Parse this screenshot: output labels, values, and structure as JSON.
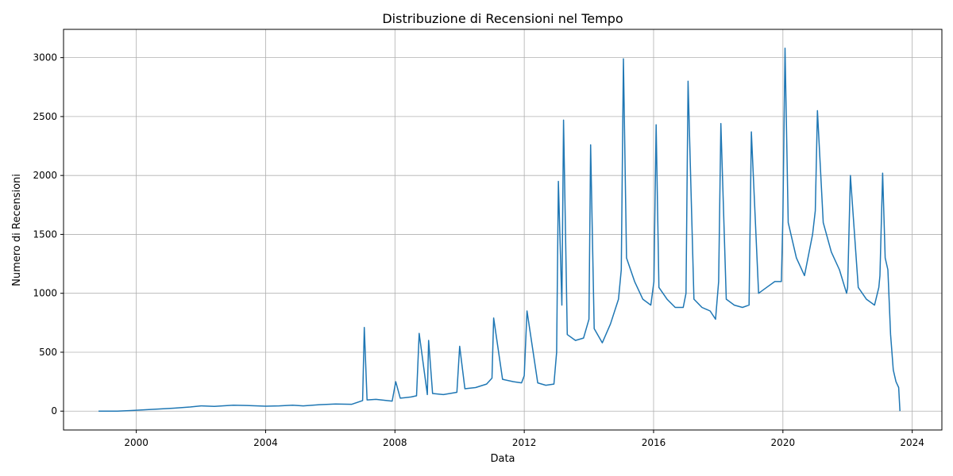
{
  "chart_data": {
    "type": "line",
    "title": "Distribuzione di Recensioni nel Tempo",
    "xlabel": "Data",
    "ylabel": "Numero di Recensioni",
    "xlim": [
      "1997-10-01",
      "2024-12-01"
    ],
    "ylim": [
      -160,
      3240
    ],
    "x_ticks": [
      "2000",
      "2004",
      "2008",
      "2012",
      "2016",
      "2020",
      "2024"
    ],
    "x_tick_dates": [
      "2000-01-01",
      "2004-01-01",
      "2008-01-01",
      "2012-01-01",
      "2016-01-01",
      "2020-01-01",
      "2024-01-01"
    ],
    "y_ticks": [
      0,
      500,
      1000,
      1500,
      2000,
      2500,
      3000
    ],
    "grid": true,
    "line_color": "#1f77b4",
    "series": [
      {
        "x": [
          "1998-11-01",
          "1999-06-01",
          "1999-11-01",
          "2000-03-01",
          "2000-09-01",
          "2001-03-01",
          "2001-09-01",
          "2002-01-01",
          "2002-06-01",
          "2003-01-01",
          "2003-06-01",
          "2004-01-01",
          "2004-06-01",
          "2004-11-01",
          "2005-03-01",
          "2005-09-01",
          "2006-03-01",
          "2006-09-01",
          "2007-01-01",
          "2007-01-20",
          "2007-02-20",
          "2007-06-01",
          "2007-12-01",
          "2008-01-10",
          "2008-03-01",
          "2008-07-01",
          "2008-09-01",
          "2008-10-01",
          "2009-01-01",
          "2009-01-15",
          "2009-03-01",
          "2009-07-01",
          "2009-12-01",
          "2010-01-01",
          "2010-03-01",
          "2010-07-01",
          "2010-11-01",
          "2011-01-01",
          "2011-01-20",
          "2011-05-01",
          "2011-09-01",
          "2011-12-01",
          "2012-01-01",
          "2012-02-01",
          "2012-06-01",
          "2012-09-01",
          "2012-12-01",
          "2013-01-01",
          "2013-01-20",
          "2013-03-01",
          "2013-03-20",
          "2013-05-01",
          "2013-08-01",
          "2013-11-01",
          "2014-01-01",
          "2014-01-20",
          "2014-03-01",
          "2014-06-01",
          "2014-09-01",
          "2014-12-01",
          "2015-01-01",
          "2015-01-25",
          "2015-03-01",
          "2015-06-01",
          "2015-09-01",
          "2015-12-01",
          "2016-01-05",
          "2016-01-30",
          "2016-03-01",
          "2016-06-01",
          "2016-09-01",
          "2016-12-01",
          "2017-01-01",
          "2017-01-25",
          "2017-04-01",
          "2017-07-01",
          "2017-10-01",
          "2017-12-01",
          "2018-01-05",
          "2018-01-30",
          "2018-04-01",
          "2018-07-01",
          "2018-10-01",
          "2018-12-15",
          "2019-01-10",
          "2019-04-01",
          "2019-07-01",
          "2019-10-01",
          "2019-12-15",
          "2020-01-01",
          "2020-01-25",
          "2020-03-01",
          "2020-06-01",
          "2020-09-01",
          "2020-12-01",
          "2021-01-01",
          "2021-01-25",
          "2021-04-01",
          "2021-07-01",
          "2021-10-01",
          "2021-12-20",
          "2022-01-01",
          "2022-02-01",
          "2022-05-01",
          "2022-08-01",
          "2022-11-01",
          "2022-12-20",
          "2023-01-01",
          "2023-02-01",
          "2023-03-01",
          "2023-04-01",
          "2023-05-01",
          "2023-06-01",
          "2023-07-01",
          "2023-08-01",
          "2023-08-15"
        ],
        "values": [
          0,
          0,
          5,
          10,
          18,
          25,
          35,
          45,
          40,
          50,
          48,
          42,
          45,
          50,
          45,
          55,
          60,
          58,
          90,
          710,
          95,
          100,
          85,
          250,
          110,
          120,
          130,
          660,
          140,
          600,
          150,
          140,
          160,
          550,
          190,
          200,
          230,
          280,
          790,
          270,
          250,
          240,
          300,
          850,
          240,
          220,
          230,
          500,
          1950,
          900,
          2470,
          650,
          600,
          620,
          780,
          2260,
          700,
          580,
          740,
          950,
          1200,
          2990,
          1300,
          1100,
          950,
          900,
          1100,
          2430,
          1050,
          950,
          880,
          880,
          1000,
          2800,
          950,
          880,
          850,
          780,
          1100,
          2440,
          950,
          900,
          880,
          900,
          2370,
          1000,
          1050,
          1100,
          1100,
          1650,
          3080,
          1600,
          1300,
          1150,
          1500,
          1700,
          2550,
          1600,
          1350,
          1200,
          1000,
          1050,
          2000,
          1050,
          950,
          900,
          1050,
          1150,
          2020,
          1300,
          1200,
          650,
          350,
          250,
          200,
          0
        ]
      }
    ]
  }
}
